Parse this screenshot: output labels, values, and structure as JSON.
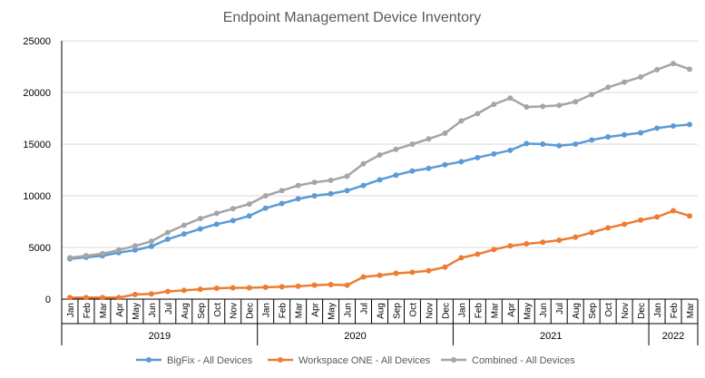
{
  "chart_data": {
    "type": "line",
    "title": "Endpoint Management Device Inventory",
    "xlabel": "",
    "ylabel": "",
    "ylim": [
      0,
      25000
    ],
    "yticks": [
      0,
      5000,
      10000,
      15000,
      20000,
      25000
    ],
    "grid": true,
    "legend_position": "bottom",
    "years": [
      {
        "label": "2019",
        "months": 12
      },
      {
        "label": "2020",
        "months": 12
      },
      {
        "label": "2021",
        "months": 12
      },
      {
        "label": "2022",
        "months": 3
      }
    ],
    "categories": [
      "Jan",
      "Feb",
      "Mar",
      "Apr",
      "May",
      "Jun",
      "Jul",
      "Aug",
      "Sep",
      "Oct",
      "Nov",
      "Dec",
      "Jan",
      "Feb",
      "Mar",
      "Apr",
      "May",
      "Jun",
      "Jul",
      "Aug",
      "Sep",
      "Oct",
      "Nov",
      "Dec",
      "Jan",
      "Feb",
      "Mar",
      "Apr",
      "May",
      "Jun",
      "Jul",
      "Aug",
      "Sep",
      "Oct",
      "Nov",
      "Dec",
      "Jan",
      "Feb",
      "Mar"
    ],
    "series": [
      {
        "name": "BigFix - All Devices",
        "color": "#5B9BD5",
        "values": [
          3900,
          4050,
          4200,
          4500,
          4750,
          5100,
          5800,
          6300,
          6800,
          7250,
          7600,
          8050,
          8800,
          9250,
          9700,
          10000,
          10200,
          10500,
          11000,
          11550,
          12000,
          12400,
          12650,
          13000,
          13300,
          13700,
          14050,
          14400,
          15050,
          15000,
          14850,
          15000,
          15400,
          15700,
          15900,
          16100,
          16550,
          16750,
          16900
        ]
      },
      {
        "name": "Workspace ONE - All Devices",
        "color": "#ED7D31",
        "values": [
          150,
          150,
          150,
          150,
          450,
          500,
          750,
          850,
          950,
          1050,
          1100,
          1100,
          1150,
          1200,
          1250,
          1350,
          1400,
          1350,
          2150,
          2300,
          2500,
          2600,
          2750,
          3100,
          4000,
          4350,
          4800,
          5150,
          5350,
          5500,
          5700,
          6000,
          6450,
          6900,
          7250,
          7650,
          7950,
          8550,
          8050
        ]
      },
      {
        "name": "Combined - All Devices",
        "color": "#A5A5A5",
        "values": [
          4000,
          4200,
          4400,
          4750,
          5150,
          5600,
          6450,
          7150,
          7800,
          8300,
          8750,
          9200,
          10000,
          10500,
          11000,
          11300,
          11500,
          11900,
          13100,
          13950,
          14500,
          15000,
          15500,
          16050,
          17250,
          17950,
          18850,
          19450,
          18600,
          18650,
          18750,
          19100,
          19800,
          20500,
          21000,
          21500,
          22200,
          22800,
          22250
        ]
      }
    ]
  }
}
